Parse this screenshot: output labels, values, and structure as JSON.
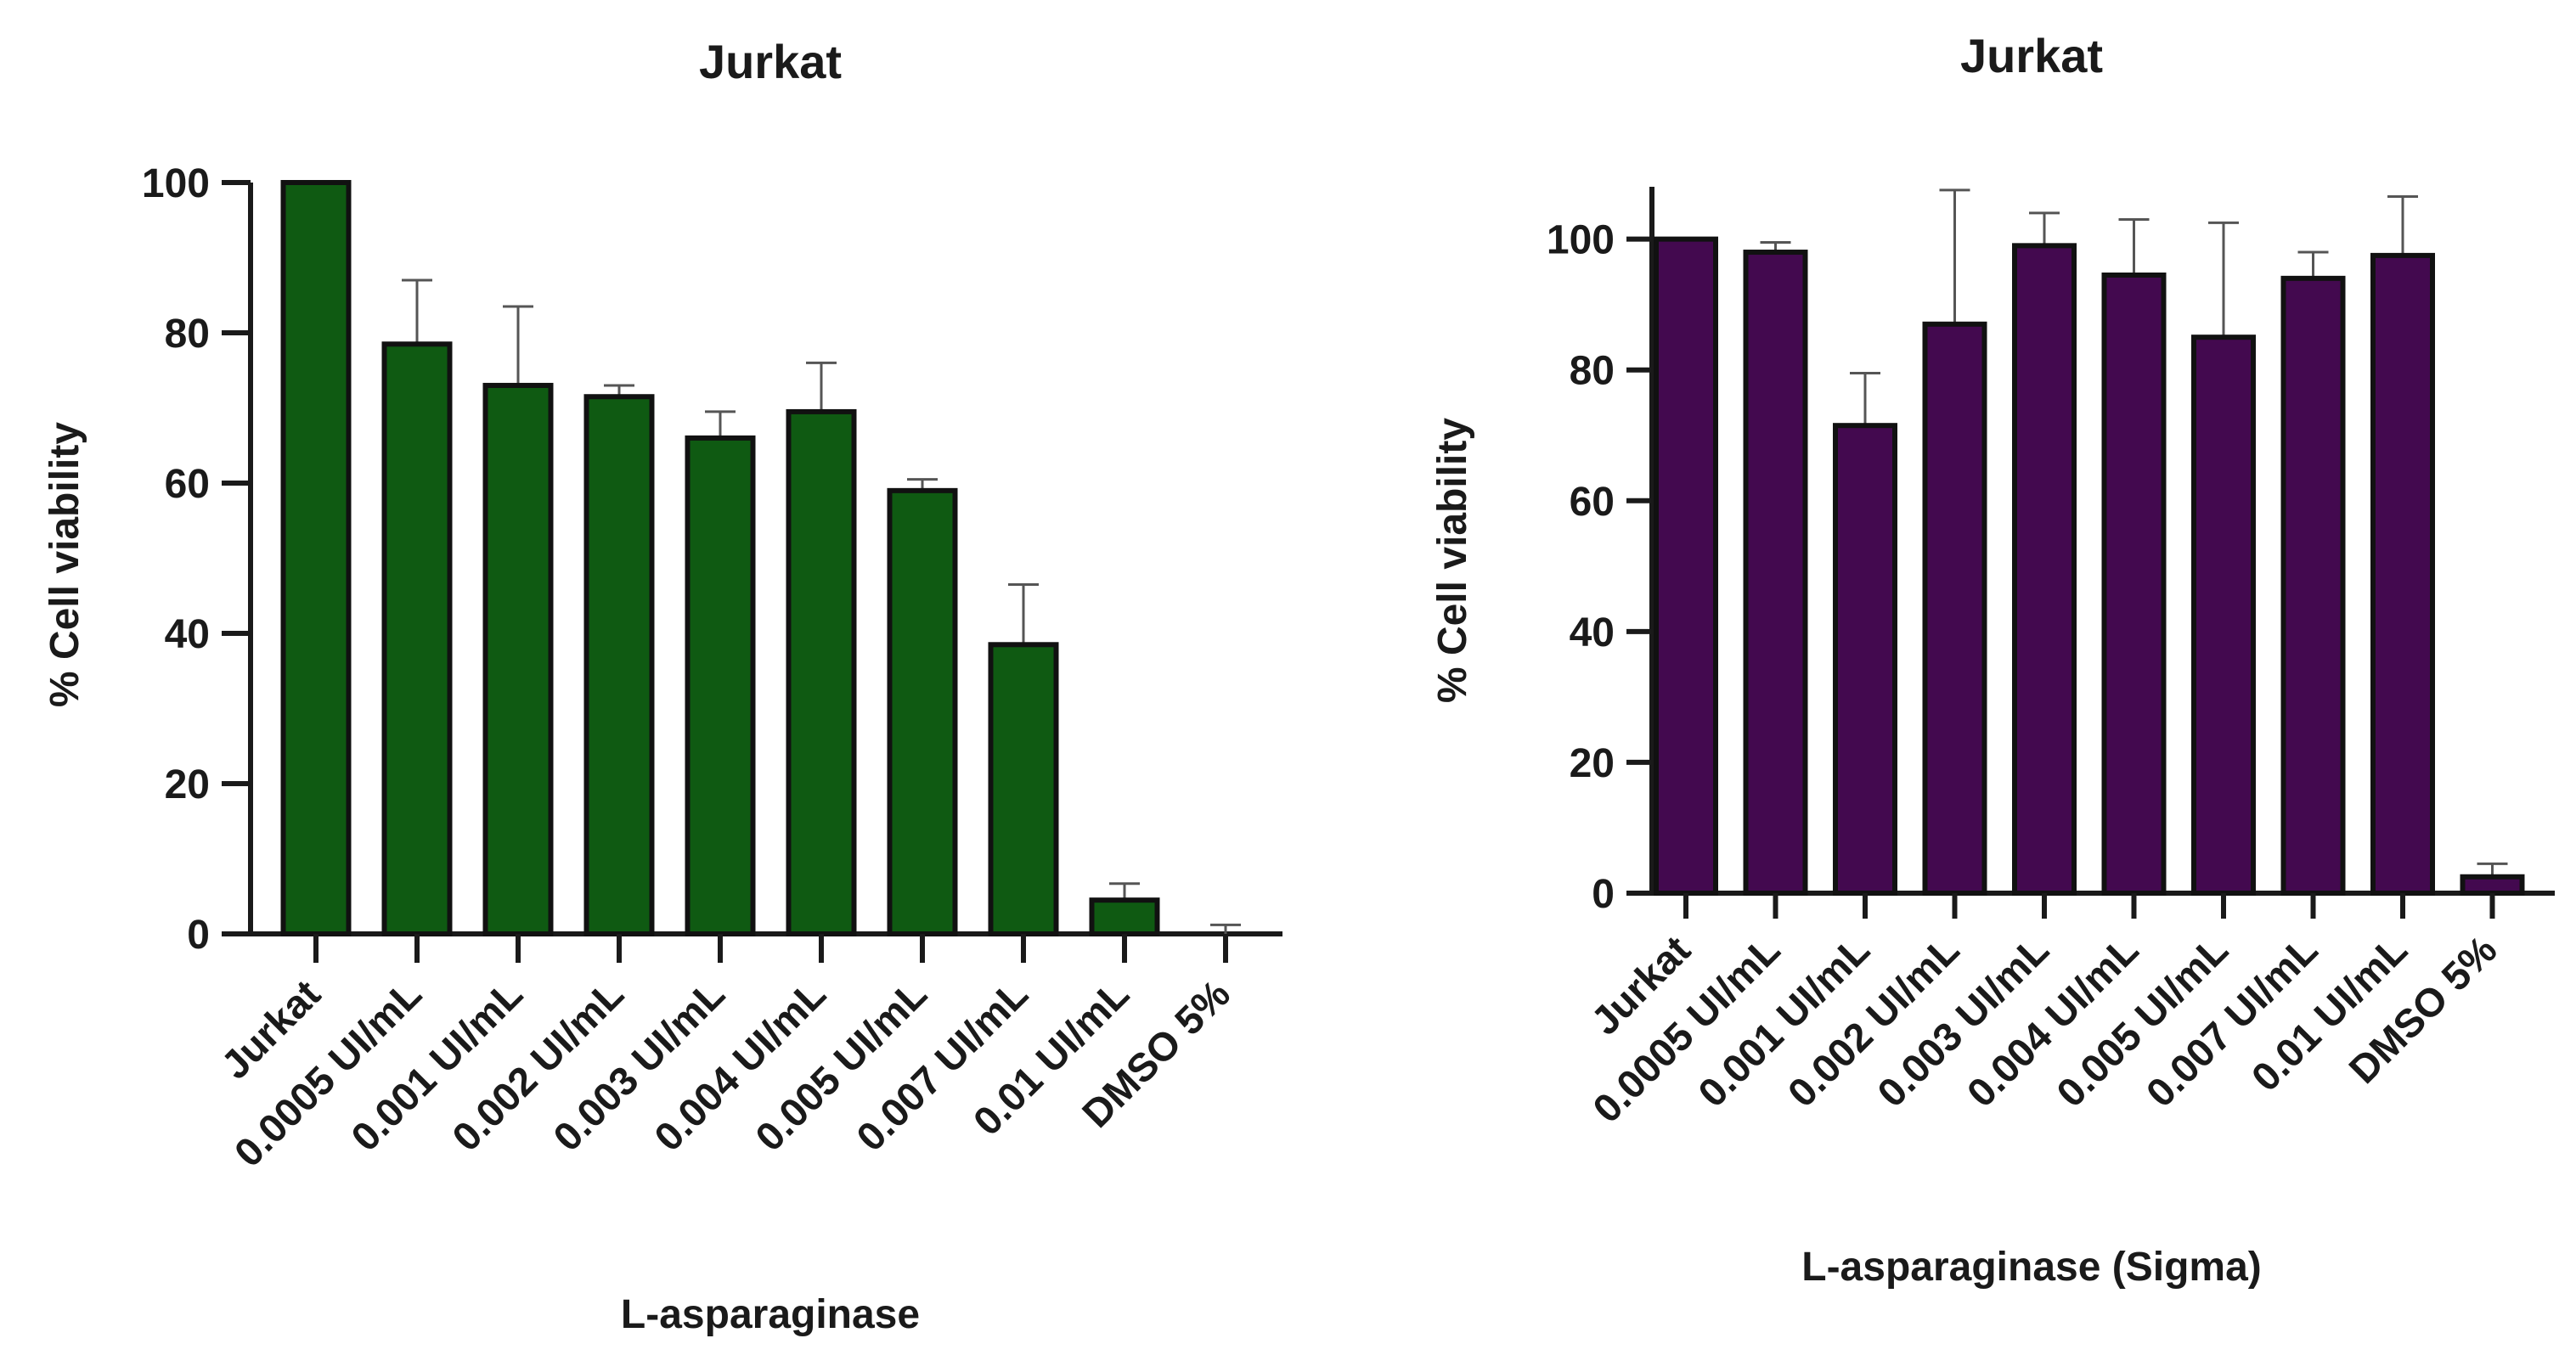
{
  "chart_data": [
    {
      "type": "bar",
      "title": "Jurkat",
      "xlabel": "L-asparaginase",
      "ylabel": "% Cell viability",
      "categories": [
        "Jurkat",
        "0.0005 UI/mL",
        "0.001 UI/mL",
        "0.002 UI/mL",
        "0.003 UI/mL",
        "0.004 UI/mL",
        "0.005 UI/mL",
        "0.007 UI/mL",
        "0.01 UI/mL",
        "DMSO 5%"
      ],
      "values": [
        100,
        78.5,
        73,
        71.5,
        66,
        69.5,
        59,
        38.5,
        4.5,
        0
      ],
      "error_upper": [
        0,
        8.5,
        10.5,
        1.5,
        3.5,
        6.5,
        1.5,
        8,
        2.2,
        1.2
      ],
      "ylim": [
        0,
        100
      ],
      "yticks": [
        0,
        20,
        40,
        60,
        80,
        100
      ],
      "bar_color": "#0f5a12",
      "grid": false,
      "legend": "none"
    },
    {
      "type": "bar",
      "title": "Jurkat",
      "xlabel": "L-asparaginase (Sigma)",
      "ylabel": "% Cell viability",
      "categories": [
        "Jurkat",
        "0.0005 UI/mL",
        "0.001 UI/mL",
        "0.002 UI/mL",
        "0.003 UI/mL",
        "0.004 UI/mL",
        "0.005 UI/mL",
        "0.007 UI/mL",
        "0.01 UI/mL",
        "DMSO 5%"
      ],
      "values": [
        100,
        98,
        71.5,
        87,
        99,
        94.5,
        85,
        94,
        97.5,
        2.5
      ],
      "error_upper": [
        0,
        1.5,
        8,
        20.5,
        5,
        8.5,
        17.5,
        4,
        9,
        2
      ],
      "ylim": [
        0,
        108
      ],
      "yticks": [
        0,
        20,
        40,
        60,
        80,
        100
      ],
      "bar_color": "#43094f",
      "grid": false,
      "legend": "none"
    }
  ]
}
